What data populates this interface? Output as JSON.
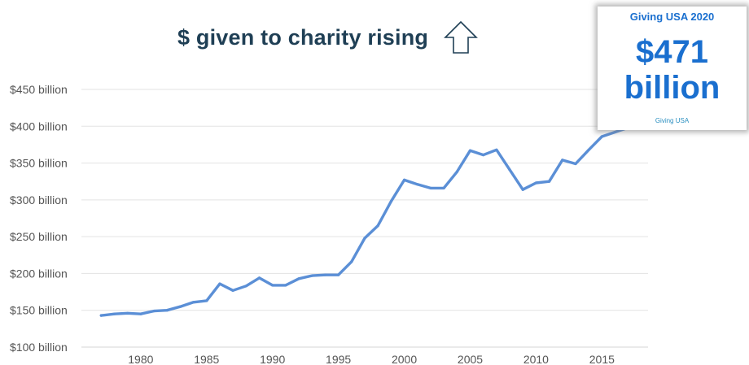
{
  "headline": {
    "text": "$ given to charity rising",
    "arrow_icon": "up-arrow-outline-icon"
  },
  "callout": {
    "heading": "Giving USA 2020",
    "amount": "$471",
    "unit": "billion",
    "source": "Giving USA"
  },
  "colors": {
    "line": "#5b8fd6",
    "headline": "#1f3f55",
    "callout_text": "#1a6fcf",
    "callout_source": "#2a8fc0",
    "grid": "#e3e3e3",
    "axis_text": "#555555",
    "arrow": "#1f3f55"
  },
  "chart_data": {
    "type": "line",
    "x": [
      1977,
      1978,
      1979,
      1980,
      1981,
      1982,
      1983,
      1984,
      1985,
      1986,
      1987,
      1988,
      1989,
      1990,
      1991,
      1992,
      1993,
      1994,
      1995,
      1996,
      1997,
      1998,
      1999,
      2000,
      2001,
      2002,
      2003,
      2004,
      2005,
      2006,
      2007,
      2008,
      2009,
      2010,
      2011,
      2012,
      2013,
      2014,
      2015,
      2016,
      2017
    ],
    "series": [
      {
        "values": [
          143,
          145,
          146,
          145,
          149,
          150,
          155,
          161,
          163,
          186,
          177,
          183,
          194,
          184,
          184,
          193,
          197,
          198,
          198,
          216,
          248,
          265,
          298,
          327,
          321,
          316,
          316,
          338,
          367,
          361,
          368,
          341,
          314,
          323,
          325,
          354,
          349,
          368,
          386,
          392,
          398
        ]
      }
    ],
    "title": "",
    "xlabel": "",
    "ylabel": "",
    "xlim": [
      1975.5,
      2018.5
    ],
    "ylim": [
      100,
      450
    ],
    "x_ticks": [
      1980,
      1985,
      1990,
      1995,
      2000,
      2005,
      2010,
      2015
    ],
    "x_tick_labels": [
      "1980",
      "1985",
      "1990",
      "1995",
      "2000",
      "2005",
      "2010",
      "2015"
    ],
    "y_ticks": [
      100,
      150,
      200,
      250,
      300,
      350,
      400,
      450
    ],
    "y_tick_labels": [
      "$100 billion",
      "$150 billion",
      "$200 billion",
      "$250 billion",
      "$300 billion",
      "$350 billion",
      "$400 billion",
      "$450 billion"
    ],
    "grid": true,
    "legend": "none"
  }
}
